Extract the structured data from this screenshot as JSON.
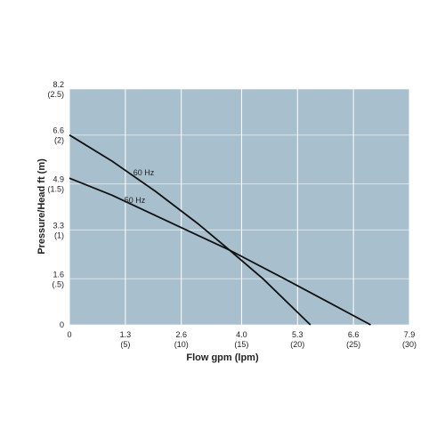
{
  "chart_data": {
    "type": "line",
    "xlabel": "Flow gpm (lpm)",
    "ylabel": "Pressure/Head ft (m)",
    "x_lists": true,
    "series": [
      {
        "name": "60 Hz",
        "color": "#111111",
        "x": [
          0,
          1,
          2,
          3,
          3.72,
          4.5,
          5.6
        ],
        "values": [
          6.6,
          5.68,
          4.64,
          3.5,
          2.6,
          1.6,
          0
        ]
      },
      {
        "name": "50 Hz",
        "color": "#111111",
        "x": [
          0,
          1,
          2,
          3,
          3.72,
          5,
          6,
          7
        ],
        "values": [
          5.1,
          4.5,
          3.8,
          3.1,
          2.6,
          1.6,
          0.8,
          0
        ]
      }
    ],
    "xlim": [
      0,
      7.9
    ],
    "ylim": [
      0,
      8.2
    ],
    "xticks": [
      0,
      {
        "value": 1.3,
        "label": "1.3",
        "metric_label": "(5)"
      },
      {
        "value": 2.6,
        "label": "2.6",
        "metric_label": "(10)"
      },
      {
        "value": 4.0,
        "label": "4.0",
        "metric_label": "(15)"
      },
      {
        "value": 5.3,
        "label": "5.3",
        "metric_label": "(20)"
      },
      {
        "value": 6.6,
        "label": "6.6",
        "metric_label": "(25)"
      },
      {
        "value": 7.9,
        "label": "7.9",
        "metric_label": "(30)"
      }
    ],
    "yticks": [
      0,
      {
        "value": 1.6,
        "label": "1.6",
        "metric_label": "(.5)"
      },
      {
        "value": 3.3,
        "label": "3.3",
        "metric_label": "(1)"
      },
      {
        "value": 4.9,
        "label": "4.9",
        "metric_label": "(1.5)"
      },
      {
        "value": 6.6,
        "label": "6.6",
        "metric_label": "(2)"
      },
      {
        "value": 8.2,
        "label": "8.2",
        "metric_label": "(2.5)"
      }
    ],
    "grid": true,
    "background": "#a8bfcd"
  }
}
